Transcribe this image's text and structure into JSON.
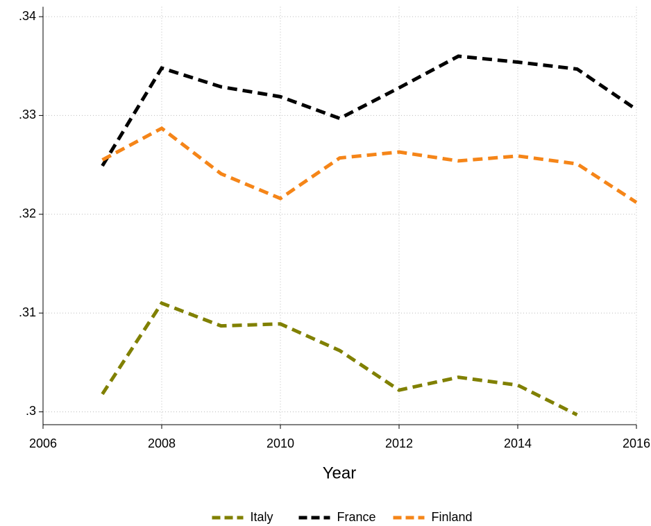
{
  "chart_data": {
    "type": "line",
    "x_label": "Year",
    "x": [
      2007,
      2008,
      2009,
      2010,
      2011,
      2012,
      2013,
      2014,
      2015,
      2016
    ],
    "series": [
      {
        "name": "Italy",
        "color": "#808000",
        "values": [
          0.3018,
          0.311,
          0.3087,
          0.3089,
          0.3062,
          0.3022,
          0.3035,
          0.3027,
          0.2997,
          null
        ]
      },
      {
        "name": "France",
        "color": "#000000",
        "values": [
          0.3249,
          0.3348,
          0.3329,
          0.3319,
          0.3297,
          0.3328,
          0.336,
          0.3354,
          0.3347,
          0.3306
        ]
      },
      {
        "name": "Finland",
        "color": "#f58518",
        "values": [
          0.3255,
          0.3287,
          0.3241,
          0.3216,
          0.3257,
          0.3263,
          0.3254,
          0.3259,
          0.3251,
          0.3212
        ]
      }
    ],
    "xlim": [
      2006,
      2016
    ],
    "xticks": [
      2006,
      2008,
      2010,
      2012,
      2014,
      2016
    ],
    "ylim": [
      0.2987,
      0.341
    ],
    "yticks": [
      {
        "value": 0.3,
        "label": ".3"
      },
      {
        "value": 0.31,
        "label": ".31"
      },
      {
        "value": 0.32,
        "label": ".32"
      },
      {
        "value": 0.33,
        "label": ".33"
      },
      {
        "value": 0.34,
        "label": ".34"
      }
    ],
    "grid": true,
    "legend": "bottom"
  }
}
